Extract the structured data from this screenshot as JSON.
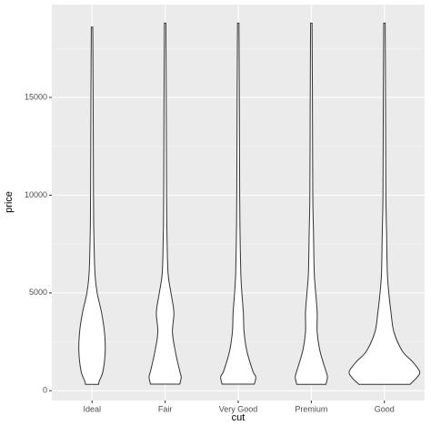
{
  "chart_data": {
    "type": "violin",
    "x_label": "cut",
    "y_label": "price",
    "categories": [
      "Ideal",
      "Fair",
      "Very Good",
      "Premium",
      "Good"
    ],
    "violins": [
      {
        "y": [
          326,
          500,
          1000,
          2000,
          3000,
          4000,
          5000,
          6000,
          8000,
          10000,
          15000,
          18600
        ],
        "density": [
          0.18,
          0.2,
          0.3,
          0.36,
          0.34,
          0.26,
          0.14,
          0.08,
          0.05,
          0.04,
          0.03,
          0.02
        ]
      },
      {
        "y": [
          337,
          700,
          1000,
          2000,
          3000,
          4000,
          5000,
          6000,
          8000,
          10000,
          15000,
          18800
        ],
        "density": [
          0.4,
          0.44,
          0.4,
          0.28,
          0.2,
          0.24,
          0.16,
          0.08,
          0.05,
          0.04,
          0.03,
          0.02
        ]
      },
      {
        "y": [
          336,
          700,
          1000,
          2000,
          3000,
          4000,
          5000,
          6000,
          8000,
          10000,
          15000,
          18800
        ],
        "density": [
          0.44,
          0.48,
          0.4,
          0.24,
          0.16,
          0.14,
          0.1,
          0.07,
          0.05,
          0.04,
          0.03,
          0.02
        ]
      },
      {
        "y": [
          326,
          700,
          1000,
          2000,
          3000,
          4000,
          5000,
          6000,
          8000,
          10000,
          15000,
          18800
        ],
        "density": [
          0.4,
          0.44,
          0.4,
          0.24,
          0.16,
          0.16,
          0.12,
          0.08,
          0.06,
          0.04,
          0.03,
          0.02
        ]
      },
      {
        "y": [
          327,
          700,
          1000,
          1500,
          2000,
          3000,
          4000,
          5000,
          6000,
          8000,
          10000,
          15000,
          18800
        ],
        "density": [
          0.7,
          0.9,
          0.96,
          0.76,
          0.5,
          0.26,
          0.18,
          0.12,
          0.08,
          0.06,
          0.04,
          0.03,
          0.02
        ]
      }
    ],
    "fill": "#ffffff",
    "stroke": "#333333",
    "ylim": [
      -500,
      19750
    ],
    "yticks": [
      0,
      5000,
      10000,
      15000
    ],
    "grid": true
  }
}
